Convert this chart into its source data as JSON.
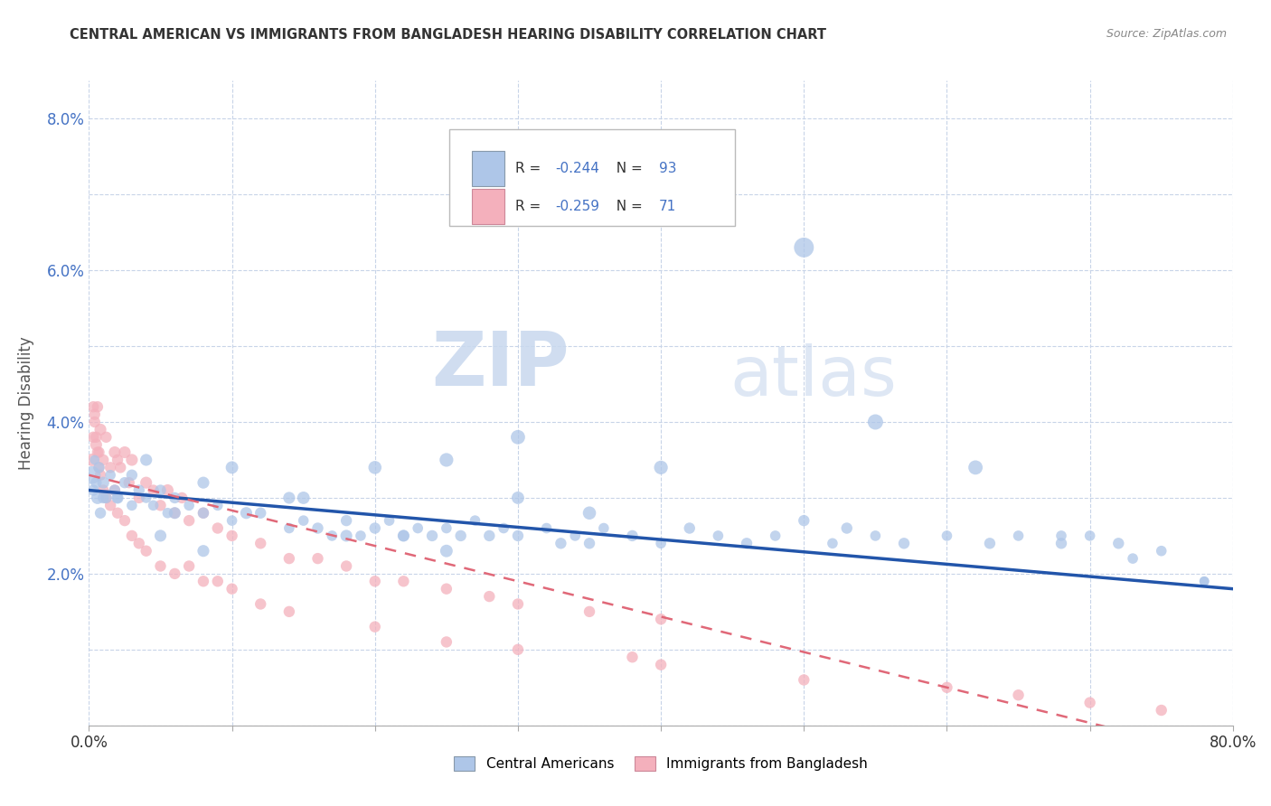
{
  "title": "CENTRAL AMERICAN VS IMMIGRANTS FROM BANGLADESH HEARING DISABILITY CORRELATION CHART",
  "source": "Source: ZipAtlas.com",
  "ylabel": "Hearing Disability",
  "xlim": [
    0.0,
    0.8
  ],
  "ylim": [
    0.0,
    0.085
  ],
  "xticks": [
    0.0,
    0.1,
    0.2,
    0.3,
    0.4,
    0.5,
    0.6,
    0.7,
    0.8
  ],
  "xticklabels": [
    "0.0%",
    "",
    "",
    "",
    "",
    "",
    "",
    "",
    "80.0%"
  ],
  "yticks": [
    0.0,
    0.01,
    0.02,
    0.03,
    0.04,
    0.05,
    0.06,
    0.07,
    0.08
  ],
  "yticklabels": [
    "",
    "",
    "2.0%",
    "",
    "4.0%",
    "",
    "6.0%",
    "",
    "8.0%"
  ],
  "series1_label": "Central Americans",
  "series2_label": "Immigrants from Bangladesh",
  "series1_R": -0.244,
  "series1_N": 93,
  "series2_R": -0.259,
  "series2_N": 71,
  "series1_color": "#aec6e8",
  "series2_color": "#f4b0bc",
  "series1_line_color": "#2255aa",
  "series2_line_color": "#e06878",
  "watermark_zip": "ZIP",
  "watermark_atlas": "atlas",
  "background_color": "#ffffff",
  "grid_color": "#c8d4e8",
  "title_color": "#333333",
  "source_color": "#888888",
  "ylabel_color": "#555555",
  "yticklabel_color": "#4472c4",
  "legend_text_color": "#333333",
  "legend_value_color": "#4472c4",
  "series1_x": [
    0.002,
    0.003,
    0.004,
    0.005,
    0.006,
    0.007,
    0.008,
    0.01,
    0.012,
    0.015,
    0.018,
    0.02,
    0.025,
    0.03,
    0.035,
    0.04,
    0.045,
    0.05,
    0.055,
    0.06,
    0.07,
    0.08,
    0.09,
    0.1,
    0.12,
    0.14,
    0.15,
    0.16,
    0.17,
    0.18,
    0.19,
    0.2,
    0.21,
    0.22,
    0.23,
    0.24,
    0.25,
    0.26,
    0.27,
    0.28,
    0.29,
    0.3,
    0.32,
    0.33,
    0.34,
    0.35,
    0.36,
    0.38,
    0.4,
    0.42,
    0.44,
    0.46,
    0.48,
    0.5,
    0.52,
    0.53,
    0.55,
    0.57,
    0.6,
    0.63,
    0.65,
    0.68,
    0.7,
    0.72,
    0.75,
    0.78,
    0.5,
    0.3,
    0.25,
    0.2,
    0.15,
    0.1,
    0.08,
    0.06,
    0.04,
    0.02,
    0.55,
    0.62,
    0.4,
    0.35,
    0.3,
    0.25,
    0.22,
    0.18,
    0.14,
    0.11,
    0.08,
    0.05,
    0.03,
    0.01,
    0.78,
    0.73,
    0.68
  ],
  "series1_y": [
    0.033,
    0.031,
    0.035,
    0.032,
    0.03,
    0.034,
    0.028,
    0.032,
    0.03,
    0.033,
    0.031,
    0.03,
    0.032,
    0.029,
    0.031,
    0.03,
    0.029,
    0.031,
    0.028,
    0.03,
    0.029,
    0.028,
    0.029,
    0.027,
    0.028,
    0.026,
    0.027,
    0.026,
    0.025,
    0.027,
    0.025,
    0.026,
    0.027,
    0.025,
    0.026,
    0.025,
    0.026,
    0.025,
    0.027,
    0.025,
    0.026,
    0.025,
    0.026,
    0.024,
    0.025,
    0.024,
    0.026,
    0.025,
    0.024,
    0.026,
    0.025,
    0.024,
    0.025,
    0.027,
    0.024,
    0.026,
    0.025,
    0.024,
    0.025,
    0.024,
    0.025,
    0.024,
    0.025,
    0.024,
    0.023,
    0.019,
    0.063,
    0.038,
    0.035,
    0.034,
    0.03,
    0.034,
    0.032,
    0.028,
    0.035,
    0.03,
    0.04,
    0.034,
    0.034,
    0.028,
    0.03,
    0.023,
    0.025,
    0.025,
    0.03,
    0.028,
    0.023,
    0.025,
    0.033,
    0.03,
    0.019,
    0.022,
    0.025
  ],
  "series1_size": [
    200,
    80,
    60,
    80,
    100,
    80,
    80,
    90,
    80,
    70,
    80,
    70,
    80,
    70,
    80,
    70,
    70,
    80,
    70,
    80,
    70,
    80,
    70,
    70,
    80,
    70,
    70,
    80,
    70,
    80,
    70,
    80,
    70,
    80,
    70,
    80,
    70,
    80,
    70,
    80,
    70,
    80,
    70,
    80,
    70,
    80,
    70,
    80,
    70,
    80,
    70,
    80,
    70,
    80,
    70,
    80,
    70,
    80,
    70,
    80,
    70,
    80,
    70,
    80,
    70,
    60,
    250,
    130,
    120,
    110,
    100,
    100,
    90,
    90,
    90,
    90,
    150,
    130,
    120,
    110,
    100,
    100,
    90,
    90,
    90,
    90,
    90,
    90,
    80,
    80,
    60,
    70,
    70
  ],
  "series2_x": [
    0.002,
    0.003,
    0.004,
    0.005,
    0.006,
    0.007,
    0.008,
    0.01,
    0.012,
    0.015,
    0.018,
    0.02,
    0.022,
    0.025,
    0.028,
    0.03,
    0.035,
    0.04,
    0.045,
    0.05,
    0.055,
    0.06,
    0.065,
    0.07,
    0.08,
    0.09,
    0.1,
    0.12,
    0.14,
    0.16,
    0.18,
    0.2,
    0.22,
    0.25,
    0.28,
    0.3,
    0.35,
    0.4,
    0.003,
    0.004,
    0.005,
    0.006,
    0.007,
    0.008,
    0.01,
    0.012,
    0.015,
    0.018,
    0.02,
    0.025,
    0.03,
    0.035,
    0.04,
    0.05,
    0.06,
    0.07,
    0.08,
    0.09,
    0.1,
    0.12,
    0.14,
    0.2,
    0.25,
    0.3,
    0.4,
    0.5,
    0.6,
    0.65,
    0.7,
    0.75,
    0.38
  ],
  "series2_y": [
    0.035,
    0.038,
    0.041,
    0.037,
    0.042,
    0.036,
    0.039,
    0.035,
    0.038,
    0.034,
    0.036,
    0.035,
    0.034,
    0.036,
    0.032,
    0.035,
    0.03,
    0.032,
    0.031,
    0.029,
    0.031,
    0.028,
    0.03,
    0.027,
    0.028,
    0.026,
    0.025,
    0.024,
    0.022,
    0.022,
    0.021,
    0.019,
    0.019,
    0.018,
    0.017,
    0.016,
    0.015,
    0.014,
    0.042,
    0.04,
    0.038,
    0.036,
    0.034,
    0.033,
    0.031,
    0.03,
    0.029,
    0.031,
    0.028,
    0.027,
    0.025,
    0.024,
    0.023,
    0.021,
    0.02,
    0.021,
    0.019,
    0.019,
    0.018,
    0.016,
    0.015,
    0.013,
    0.011,
    0.01,
    0.008,
    0.006,
    0.005,
    0.004,
    0.003,
    0.002,
    0.009
  ],
  "series2_size": [
    100,
    80,
    80,
    90,
    80,
    80,
    90,
    80,
    80,
    80,
    90,
    80,
    80,
    90,
    80,
    90,
    80,
    90,
    80,
    80,
    90,
    80,
    80,
    80,
    80,
    80,
    80,
    80,
    80,
    80,
    80,
    80,
    80,
    80,
    80,
    80,
    80,
    80,
    80,
    80,
    80,
    80,
    80,
    80,
    80,
    80,
    80,
    80,
    80,
    80,
    80,
    80,
    80,
    80,
    80,
    80,
    80,
    80,
    80,
    80,
    80,
    80,
    80,
    80,
    80,
    80,
    80,
    80,
    80,
    80,
    80
  ]
}
